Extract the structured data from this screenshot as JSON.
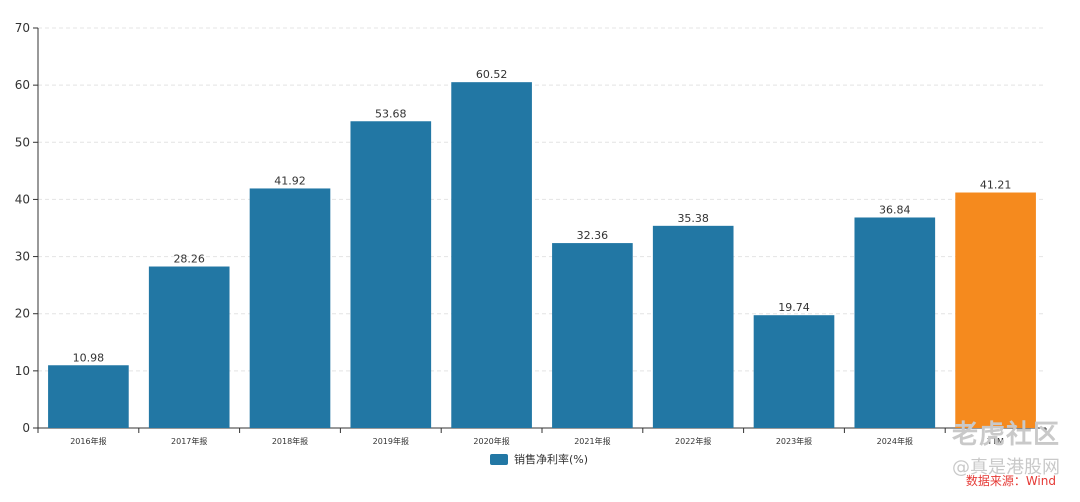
{
  "chart_data": {
    "type": "bar",
    "categories": [
      "2016年报",
      "2017年报",
      "2018年报",
      "2019年报",
      "2020年报",
      "2021年报",
      "2022年报",
      "2023年报",
      "2024年报",
      "TTM"
    ],
    "series": [
      {
        "name": "销售净利率(%)",
        "values": [
          10.98,
          28.26,
          41.92,
          53.68,
          60.52,
          32.36,
          35.38,
          19.74,
          36.84,
          41.21
        ]
      }
    ],
    "data_labels": [
      "10.98",
      "28.26",
      "41.92",
      "53.68",
      "60.52",
      "32.36",
      "35.38",
      "19.74",
      "36.84",
      "41.21"
    ],
    "ylim": [
      0,
      70
    ],
    "yticks": [
      0,
      10,
      20,
      30,
      40,
      50,
      60,
      70
    ],
    "grid": true,
    "legend_position": "bottom-center",
    "colors": {
      "bar": "#2277a4",
      "highlight": "#f58a1e",
      "axis": "#333333",
      "grid": "#e4e4e4",
      "label": "#333333"
    },
    "highlight_index": 9
  },
  "watermark": {
    "main": "老虎社区",
    "sub": "@真是港股网"
  },
  "source_note": "数据来源：Wind"
}
